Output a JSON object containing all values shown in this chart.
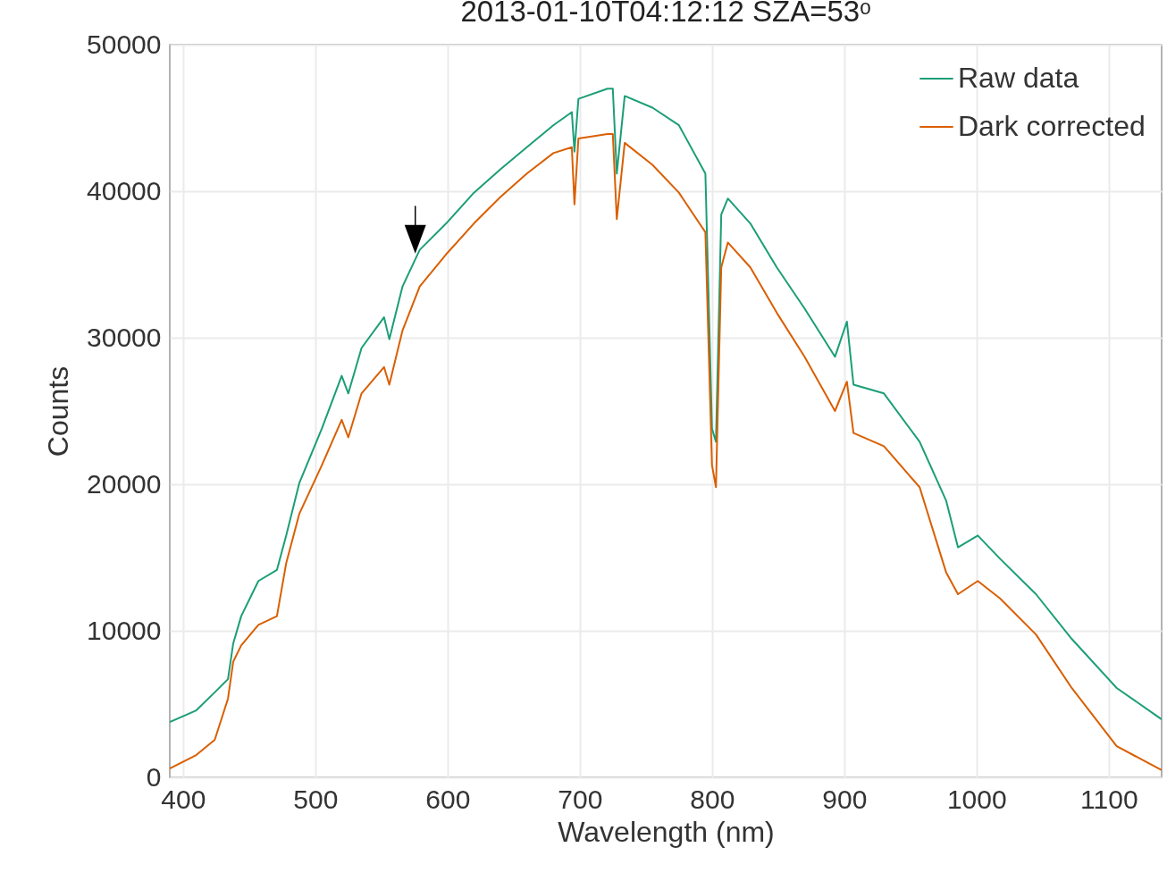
{
  "chart_data": {
    "type": "line",
    "title": "2013-01-10T04:12:12 SZA=53ᵒ",
    "xlabel": "Wavelength (nm)",
    "ylabel": "Counts",
    "x": [
      390,
      410,
      424,
      434,
      438,
      444,
      457,
      471,
      478,
      488,
      505,
      520,
      525,
      535,
      552,
      556,
      566,
      579,
      599,
      620,
      640,
      660,
      680,
      694,
      696,
      699,
      721,
      725,
      728,
      734,
      755,
      775,
      795,
      800,
      803,
      807,
      812,
      829,
      849,
      870,
      893,
      902,
      907,
      930,
      957,
      977,
      986,
      1001,
      1018,
      1045,
      1072,
      1106,
      1140
    ],
    "series": [
      {
        "name": "Raw data",
        "color": "#1b9e77",
        "values": [
          3780,
          4570,
          5800,
          6700,
          9150,
          11000,
          13400,
          14150,
          16500,
          20100,
          23800,
          27400,
          26200,
          29300,
          31400,
          29900,
          33500,
          36000,
          37800,
          39900,
          41500,
          43000,
          44500,
          45400,
          42700,
          46300,
          47000,
          47000,
          41200,
          46500,
          45700,
          44500,
          41200,
          23800,
          22900,
          38400,
          39500,
          37800,
          34800,
          32000,
          28700,
          31100,
          26800,
          26200,
          22900,
          18900,
          15700,
          16500,
          14900,
          12500,
          9450,
          6100,
          3960
        ]
      },
      {
        "name": "Dark corrected",
        "color": "#d95f02",
        "values": [
          600,
          1520,
          2560,
          5370,
          7900,
          9000,
          10400,
          11000,
          14600,
          18000,
          21300,
          24400,
          23200,
          26200,
          28000,
          26800,
          30500,
          33500,
          35700,
          37800,
          39600,
          41200,
          42600,
          43000,
          39100,
          43600,
          43900,
          43900,
          38100,
          43300,
          41800,
          39900,
          37200,
          21300,
          19800,
          34800,
          36500,
          34800,
          31700,
          28700,
          25000,
          27000,
          23500,
          22600,
          19800,
          14000,
          12500,
          13400,
          12200,
          9750,
          6100,
          2130,
          490
        ]
      }
    ],
    "xlim": [
      390,
      1140
    ],
    "xticks": [
      400,
      500,
      600,
      700,
      800,
      900,
      1000,
      1100
    ],
    "ylim": [
      0,
      50000
    ],
    "yticks": [
      0,
      10000,
      20000,
      30000,
      40000,
      50000
    ],
    "grid": true,
    "legend": "top right"
  }
}
